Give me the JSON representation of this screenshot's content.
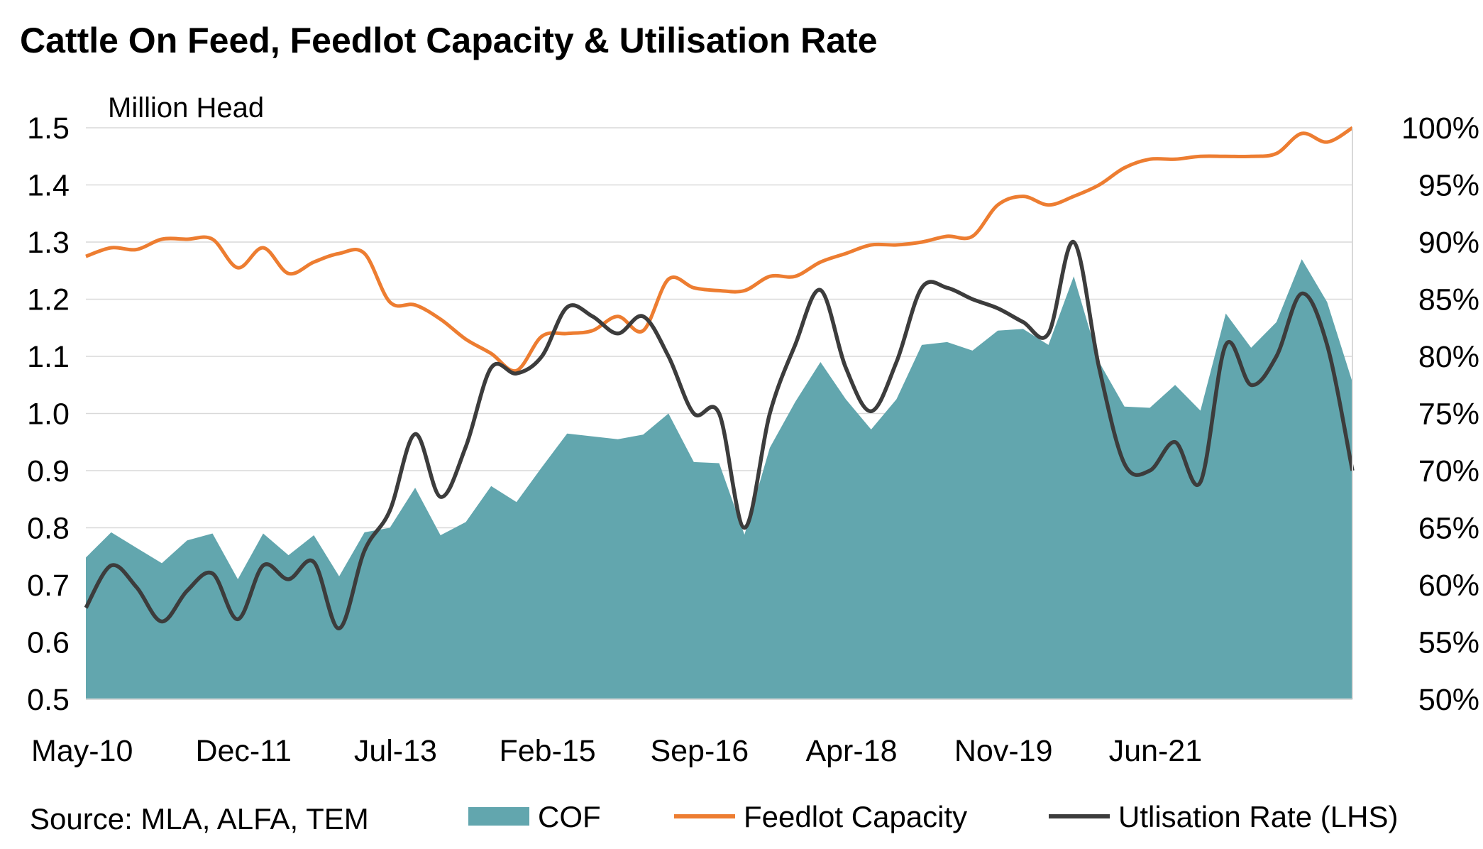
{
  "title": "Cattle On Feed, Feedlot Capacity & Utilisation Rate",
  "source": "Source: MLA, ALFA, TEM",
  "chart_data": {
    "type": "area",
    "title": "Cattle On Feed, Feedlot Capacity & Utilisation Rate",
    "left_axis_unit": "Million Head",
    "y_left": {
      "min": 0.5,
      "max": 1.5,
      "ticks": [
        "1.5",
        "1.4",
        "1.3",
        "1.2",
        "1.1",
        "1.0",
        "0.9",
        "0.8",
        "0.7",
        "0.6",
        "0.5"
      ]
    },
    "y_right": {
      "min": 0.5,
      "max": 1.0,
      "ticks": [
        "100%",
        "95%",
        "90%",
        "85%",
        "80%",
        "75%",
        "70%",
        "65%",
        "60%",
        "55%",
        "50%"
      ]
    },
    "x_tick_labels": [
      "May-10",
      "Dec-11",
      "Jul-13",
      "Feb-15",
      "Sep-16",
      "Apr-18",
      "Nov-19",
      "Jun-21"
    ],
    "x_tick_indices": [
      0,
      6,
      12,
      18,
      24,
      30,
      36,
      42
    ],
    "grid": "horizontal",
    "legend_position": "bottom",
    "series": [
      {
        "name": "COF",
        "type": "area",
        "axis": "left",
        "color": "#62a6ae",
        "values": [
          0.748,
          0.792,
          0.765,
          0.738,
          0.778,
          0.79,
          0.71,
          0.79,
          0.752,
          0.787,
          0.715,
          0.792,
          0.8,
          0.87,
          0.787,
          0.81,
          0.873,
          0.845,
          0.906,
          0.965,
          0.96,
          0.955,
          0.963,
          1.0,
          0.915,
          0.913,
          0.788,
          0.94,
          1.02,
          1.09,
          1.025,
          0.972,
          1.025,
          1.12,
          1.125,
          1.11,
          1.145,
          1.148,
          1.12,
          1.24,
          1.09,
          1.012,
          1.01,
          1.05,
          1.005,
          1.175,
          1.115,
          1.16,
          1.27,
          1.195,
          1.055
        ]
      },
      {
        "name": "Feedlot Capacity",
        "type": "line",
        "axis": "left",
        "color": "#ed7d31",
        "values": [
          1.275,
          1.29,
          1.287,
          1.305,
          1.305,
          1.305,
          1.255,
          1.29,
          1.245,
          1.265,
          1.28,
          1.28,
          1.195,
          1.19,
          1.165,
          1.13,
          1.105,
          1.075,
          1.135,
          1.14,
          1.145,
          1.17,
          1.145,
          1.235,
          1.22,
          1.215,
          1.215,
          1.24,
          1.24,
          1.265,
          1.28,
          1.295,
          1.295,
          1.3,
          1.31,
          1.31,
          1.365,
          1.38,
          1.365,
          1.38,
          1.4,
          1.43,
          1.445,
          1.445,
          1.45,
          1.45,
          1.45,
          1.455,
          1.49,
          1.475,
          1.5
        ]
      },
      {
        "name": "Utlisation Rate (LHS)",
        "type": "line",
        "axis": "right",
        "color": "#3c3c3c",
        "values": [
          0.58,
          0.617,
          0.598,
          0.568,
          0.595,
          0.61,
          0.57,
          0.617,
          0.605,
          0.62,
          0.562,
          0.63,
          0.665,
          0.732,
          0.677,
          0.721,
          0.79,
          0.785,
          0.8,
          0.843,
          0.835,
          0.82,
          0.835,
          0.8,
          0.75,
          0.75,
          0.65,
          0.75,
          0.81,
          0.858,
          0.79,
          0.752,
          0.795,
          0.86,
          0.86,
          0.85,
          0.842,
          0.83,
          0.82,
          0.9,
          0.79,
          0.706,
          0.7,
          0.725,
          0.69,
          0.81,
          0.775,
          0.8,
          0.855,
          0.81,
          0.7
        ]
      }
    ]
  },
  "legend": [
    {
      "label": "COF",
      "color": "#62a6ae",
      "kind": "swatch"
    },
    {
      "label": "Feedlot Capacity",
      "color": "#ed7d31",
      "kind": "line"
    },
    {
      "label": "Utlisation Rate (LHS)",
      "color": "#3c3c3c",
      "kind": "line"
    }
  ]
}
